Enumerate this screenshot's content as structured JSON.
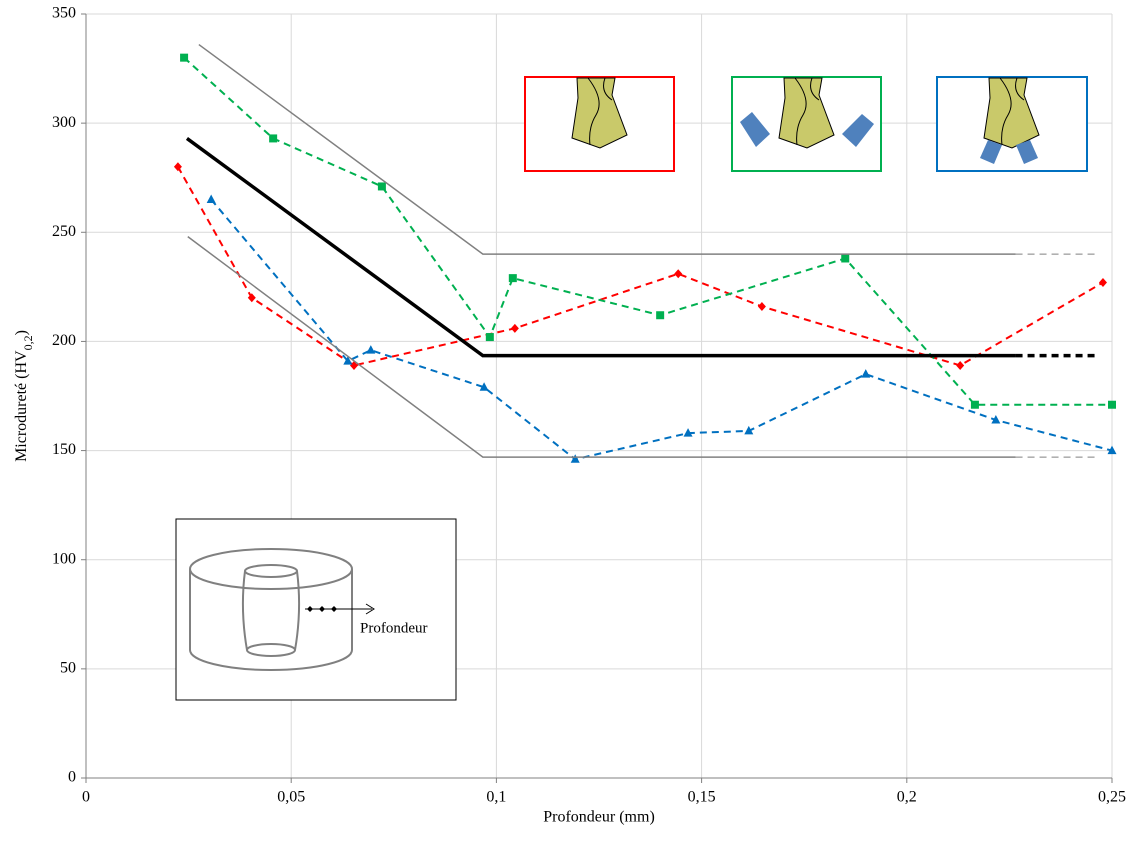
{
  "chart_data": {
    "type": "line",
    "x_label": "Profondeur (mm)",
    "y_label": [
      "Microdureté (HV",
      "0,2",
      ")"
    ],
    "annotations": [
      "Profondeur"
    ],
    "xlim": [
      0,
      0.25
    ],
    "ylim": [
      0,
      350
    ],
    "xticks": [
      0,
      {
        "value": 0.05,
        "label": "0,05"
      },
      {
        "value": 0.1,
        "label": "0,1"
      },
      {
        "value": 0.15,
        "label": "0,15"
      },
      {
        "value": 0.2,
        "label": "0,2"
      },
      {
        "value": 0.25,
        "label": "0,25"
      }
    ],
    "yticks": [
      0,
      50,
      100,
      150,
      200,
      250,
      300,
      350
    ],
    "grid": true,
    "series": [
      {
        "color": "#ff0000",
        "style": "dashed",
        "marker": "diamond",
        "width": 2,
        "x": [
          0.0224,
          0.0404,
          0.0653,
          0.1045,
          0.1443,
          0.1647,
          0.213,
          0.2478
        ],
        "values": [
          280,
          220,
          189,
          206,
          231,
          216,
          189,
          227
        ]
      },
      {
        "color": "#00b050",
        "style": "dashed",
        "marker": "square",
        "width": 2,
        "x": [
          0.0239,
          0.0456,
          0.0721,
          0.0984,
          0.104,
          0.1399,
          0.185,
          0.2166,
          0.25
        ],
        "values": [
          330,
          293,
          271,
          202,
          229,
          212,
          238,
          171,
          171
        ]
      },
      {
        "color": "#0070c0",
        "style": "dashed",
        "marker": "triangle",
        "width": 2,
        "x": [
          0.0305,
          0.0638,
          0.0694,
          0.097,
          0.1192,
          0.1467,
          0.1615,
          0.19,
          0.2217,
          0.25
        ],
        "values": [
          265,
          191,
          196,
          179,
          146,
          158,
          159,
          185,
          164,
          150
        ]
      },
      {
        "color": "#000000",
        "style": "solid",
        "width": 3.5,
        "x": [
          0.0246,
          0.0967,
          0.2265
        ],
        "values": [
          293,
          193.5,
          193.5
        ]
      },
      {
        "color": "#000000",
        "style": "dashed",
        "width": 3.5,
        "x": [
          0.2265,
          0.2463
        ],
        "values": [
          193.5,
          193.5
        ]
      },
      {
        "color": "#808080",
        "style": "solid",
        "width": 1.5,
        "x": [
          0.0275,
          0.0967,
          0.2265
        ],
        "values": [
          336,
          240,
          240
        ]
      },
      {
        "color": "#808080",
        "style": "dashed",
        "width": 1,
        "x": [
          0.2265,
          0.2463
        ],
        "values": [
          240,
          240
        ]
      },
      {
        "color": "#808080",
        "style": "solid",
        "width": 1.5,
        "x": [
          0.0248,
          0.0967,
          0.2265
        ],
        "values": [
          248,
          147,
          147
        ]
      },
      {
        "color": "#808080",
        "style": "dashed",
        "width": 1,
        "x": [
          0.2265,
          0.2463
        ],
        "values": [
          147,
          147
        ]
      }
    ]
  }
}
